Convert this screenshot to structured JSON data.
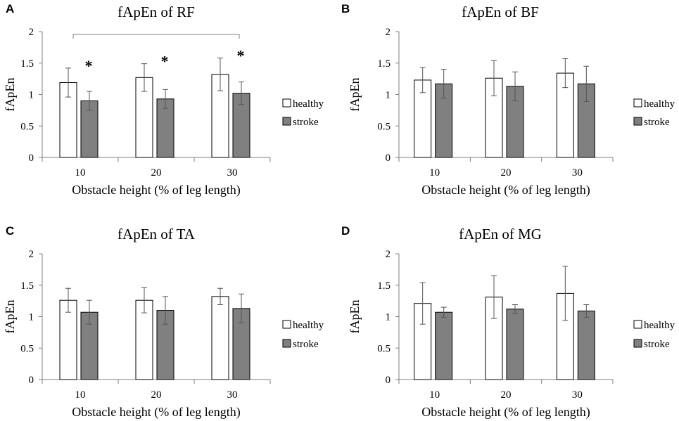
{
  "chart_data": [
    {
      "panel": "A",
      "type": "bar",
      "title": "fApEn of RF",
      "xlabel": "Obstacle height (% of leg length)",
      "ylabel": "fApEn",
      "categories": [
        "10",
        "20",
        "30"
      ],
      "ylim": [
        0,
        2
      ],
      "yticks": [
        "0",
        "0.5",
        "1",
        "1.5",
        "2"
      ],
      "series": [
        {
          "name": "healthy",
          "color": "#ffffff",
          "values": [
            1.19,
            1.27,
            1.32
          ],
          "errors": [
            0.23,
            0.22,
            0.26
          ]
        },
        {
          "name": "stroke",
          "color": "#808080",
          "values": [
            0.9,
            0.93,
            1.02
          ],
          "errors": [
            0.15,
            0.15,
            0.18
          ]
        }
      ],
      "significance": {
        "markers": [
          "*",
          "*",
          "*"
        ],
        "bracket": "10-30"
      }
    },
    {
      "panel": "B",
      "type": "bar",
      "title": "fApEn of BF",
      "xlabel": "Obstacle height (% of leg length)",
      "ylabel": "fApEn",
      "categories": [
        "10",
        "20",
        "30"
      ],
      "ylim": [
        0,
        2
      ],
      "yticks": [
        "0",
        "0.5",
        "1",
        "1.5",
        "2"
      ],
      "series": [
        {
          "name": "healthy",
          "color": "#ffffff",
          "values": [
            1.23,
            1.26,
            1.34
          ],
          "errors": [
            0.2,
            0.28,
            0.23
          ]
        },
        {
          "name": "stroke",
          "color": "#808080",
          "values": [
            1.17,
            1.13,
            1.17
          ],
          "errors": [
            0.23,
            0.23,
            0.28
          ]
        }
      ]
    },
    {
      "panel": "C",
      "type": "bar",
      "title": "fApEn of TA",
      "xlabel": "Obstacle height (% of leg length)",
      "ylabel": "fApEn",
      "categories": [
        "10",
        "20",
        "30"
      ],
      "ylim": [
        0,
        2
      ],
      "yticks": [
        "0",
        "0.5",
        "1",
        "1.5",
        "2"
      ],
      "series": [
        {
          "name": "healthy",
          "color": "#ffffff",
          "values": [
            1.26,
            1.26,
            1.32
          ],
          "errors": [
            0.19,
            0.2,
            0.13
          ]
        },
        {
          "name": "stroke",
          "color": "#808080",
          "values": [
            1.07,
            1.1,
            1.13
          ],
          "errors": [
            0.19,
            0.22,
            0.23
          ]
        }
      ]
    },
    {
      "panel": "D",
      "type": "bar",
      "title": "fApEn of MG",
      "xlabel": "Obstacle height (% of leg length)",
      "ylabel": "fApEn",
      "categories": [
        "10",
        "20",
        "30"
      ],
      "ylim": [
        0,
        2
      ],
      "yticks": [
        "0",
        "0.5",
        "1",
        "1.5",
        "2"
      ],
      "series": [
        {
          "name": "healthy",
          "color": "#ffffff",
          "values": [
            1.21,
            1.31,
            1.37
          ],
          "errors": [
            0.33,
            0.34,
            0.43
          ]
        },
        {
          "name": "stroke",
          "color": "#808080",
          "values": [
            1.07,
            1.12,
            1.09
          ],
          "errors": [
            0.08,
            0.07,
            0.1
          ]
        }
      ]
    }
  ]
}
